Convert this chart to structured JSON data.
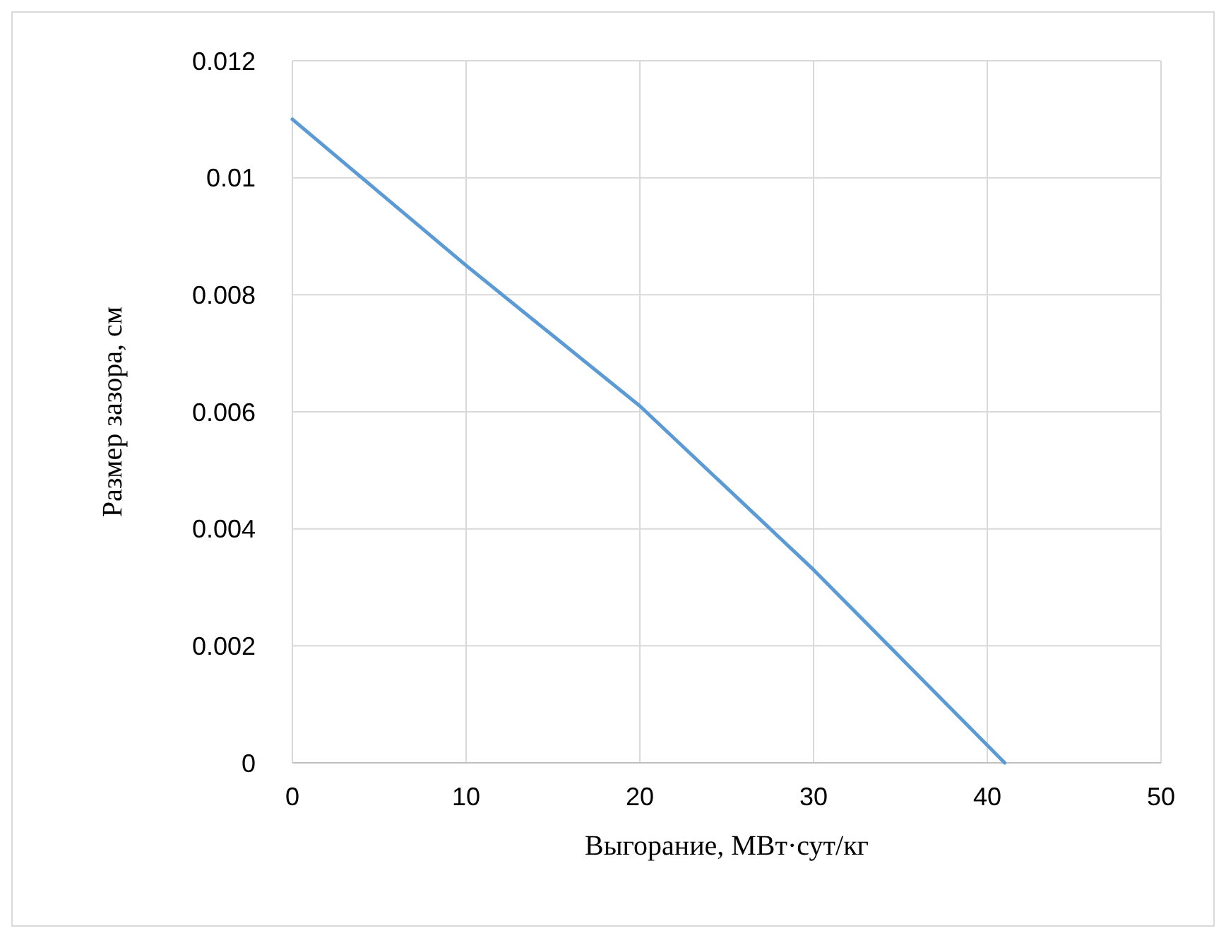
{
  "chart_data": {
    "type": "line",
    "xlabel": "Выгорание, МВт·сут/кг",
    "ylabel": "Размер зазора, см",
    "x": [
      0,
      5,
      10,
      15,
      20,
      25,
      30,
      35,
      41
    ],
    "series": [
      {
        "color": "#5b9bd5",
        "values": [
          0.011,
          0.00975,
          0.0085,
          0.0073,
          0.0061,
          0.0047,
          0.0033,
          0.0018,
          0
        ]
      }
    ],
    "xlim": [
      0,
      50
    ],
    "xticks": [
      0,
      10,
      20,
      30,
      40,
      50
    ],
    "ylim": [
      0,
      0.012
    ],
    "yticks": [
      0,
      0.002,
      0.004,
      0.006,
      0.008,
      0.01,
      0.012
    ],
    "grid": true,
    "marker": "none",
    "line_style": "solid"
  }
}
